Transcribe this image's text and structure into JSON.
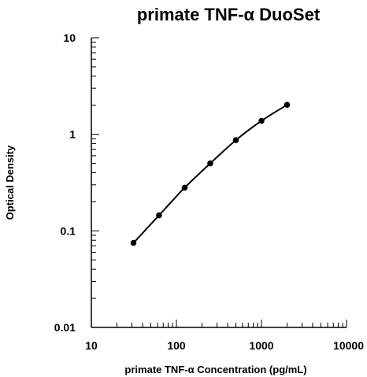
{
  "chart_data": {
    "type": "line",
    "title": "primate TNF-α DuoSet",
    "xlabel": "primate TNF-α  Concentration (pg/mL)",
    "ylabel": "Optical Density",
    "x_scale": "log",
    "y_scale": "log",
    "xlim": [
      10,
      10000
    ],
    "ylim": [
      0.01,
      10
    ],
    "x_ticks": [
      {
        "value": 10,
        "label": "10"
      },
      {
        "value": 100,
        "label": "100"
      },
      {
        "value": 1000,
        "label": "1000"
      },
      {
        "value": 10000,
        "label": "10000"
      }
    ],
    "y_ticks": [
      {
        "value": 0.01,
        "label": "0.01"
      },
      {
        "value": 0.1,
        "label": "0.1"
      },
      {
        "value": 1,
        "label": "1"
      },
      {
        "value": 10,
        "label": "10"
      }
    ],
    "grid": false,
    "legend": "none",
    "series": [
      {
        "x": [
          31.25,
          62.5,
          125,
          250,
          500,
          1000,
          2000
        ],
        "y": [
          0.075,
          0.145,
          0.28,
          0.5,
          0.87,
          1.38,
          2.02
        ],
        "color": "#000000",
        "marker": "filled-circle"
      }
    ]
  }
}
